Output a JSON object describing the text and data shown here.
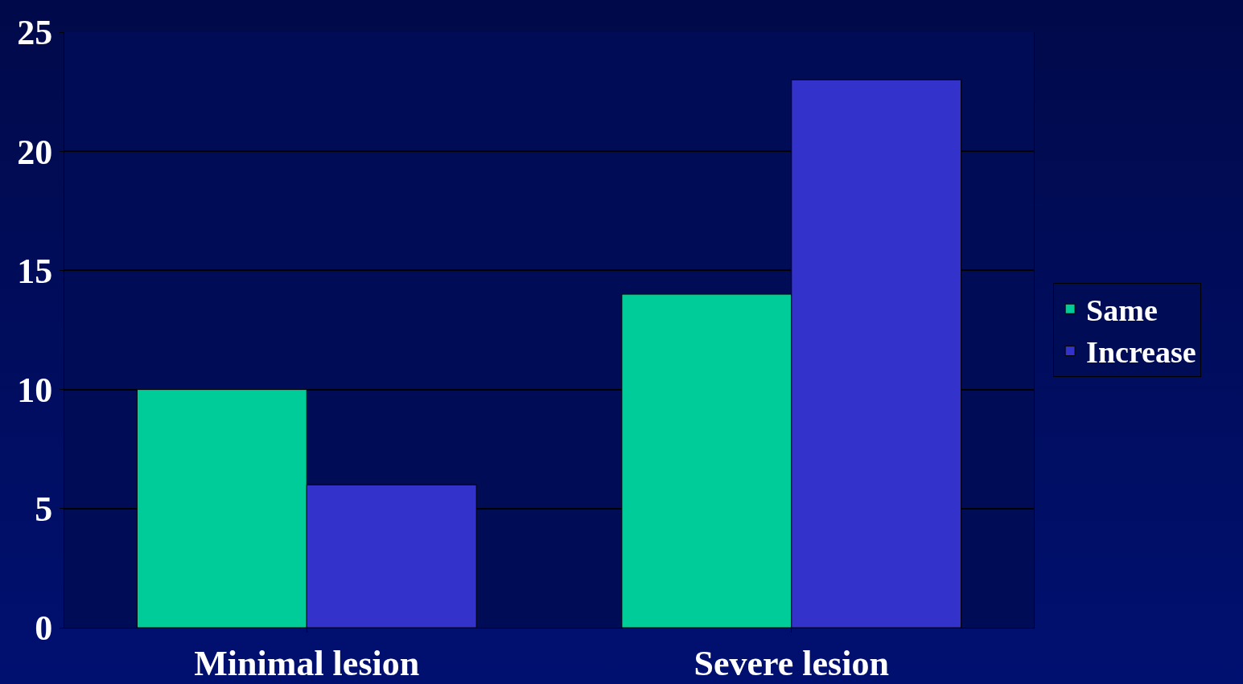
{
  "chart_data": {
    "type": "bar",
    "categories": [
      "Minimal lesion",
      "Severe lesion"
    ],
    "series": [
      {
        "name": "Same",
        "color": "#00cc99",
        "values": [
          10,
          14
        ]
      },
      {
        "name": "Increase",
        "color": "#3333cc",
        "values": [
          6,
          23
        ]
      }
    ],
    "ylim": [
      0,
      25
    ],
    "yticks": [
      0,
      5,
      10,
      15,
      20,
      25
    ],
    "grid": "y",
    "legend": "right"
  }
}
